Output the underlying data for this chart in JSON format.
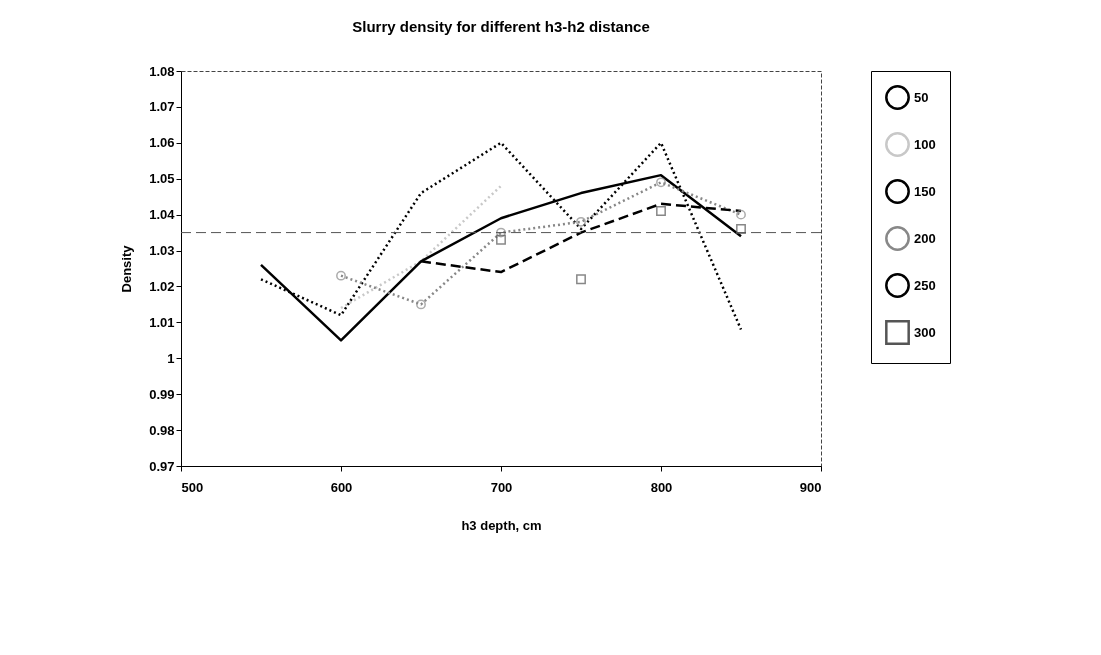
{
  "chart_data": {
    "type": "line",
    "title": "Slurry density for different h3-h2 distance",
    "xlabel": "h3 depth, cm",
    "ylabel": "Density",
    "x": [
      550,
      600,
      650,
      700,
      750,
      800,
      850
    ],
    "series": [
      {
        "name": "50",
        "color": "#000000",
        "line_style": "dotted",
        "values": [
          1.022,
          1.012,
          1.046,
          1.06,
          1.036,
          1.06,
          1.008
        ]
      },
      {
        "name": "100",
        "color": "#c8c8c8",
        "line_style": "dotted",
        "values": [
          null,
          1.014,
          1.027,
          1.048,
          null,
          null,
          null
        ]
      },
      {
        "name": "150",
        "color": "#000000",
        "line_style": "solid",
        "values": [
          1.026,
          1.005,
          1.027,
          1.039,
          1.046,
          1.051,
          1.034
        ]
      },
      {
        "name": "200",
        "color": "#888888",
        "line_style": "dotted",
        "marker": "circle",
        "values": [
          null,
          1.023,
          1.015,
          1.035,
          1.038,
          1.049,
          1.04
        ]
      },
      {
        "name": "250",
        "color": "#000000",
        "line_style": "dashed",
        "values": [
          null,
          null,
          1.027,
          1.024,
          1.035,
          1.043,
          1.041
        ]
      },
      {
        "name": "300",
        "type": "scatter",
        "color": "#555555",
        "marker": "square",
        "values": [
          null,
          null,
          null,
          1.033,
          1.022,
          1.041,
          1.036
        ]
      }
    ],
    "xlim": [
      500,
      900
    ],
    "xticks": [
      500,
      600,
      700,
      800,
      900
    ],
    "ylim": [
      0.97,
      1.08
    ],
    "yticks": [
      0.97,
      0.98,
      0.99,
      1,
      1.01,
      1.02,
      1.03,
      1.04,
      1.05,
      1.06,
      1.07,
      1.08
    ],
    "ref_lines": [
      {
        "axis": "y",
        "value": 1.035,
        "line_style": "dashed",
        "color": "#555555"
      }
    ],
    "grid": false,
    "legend": "right"
  }
}
